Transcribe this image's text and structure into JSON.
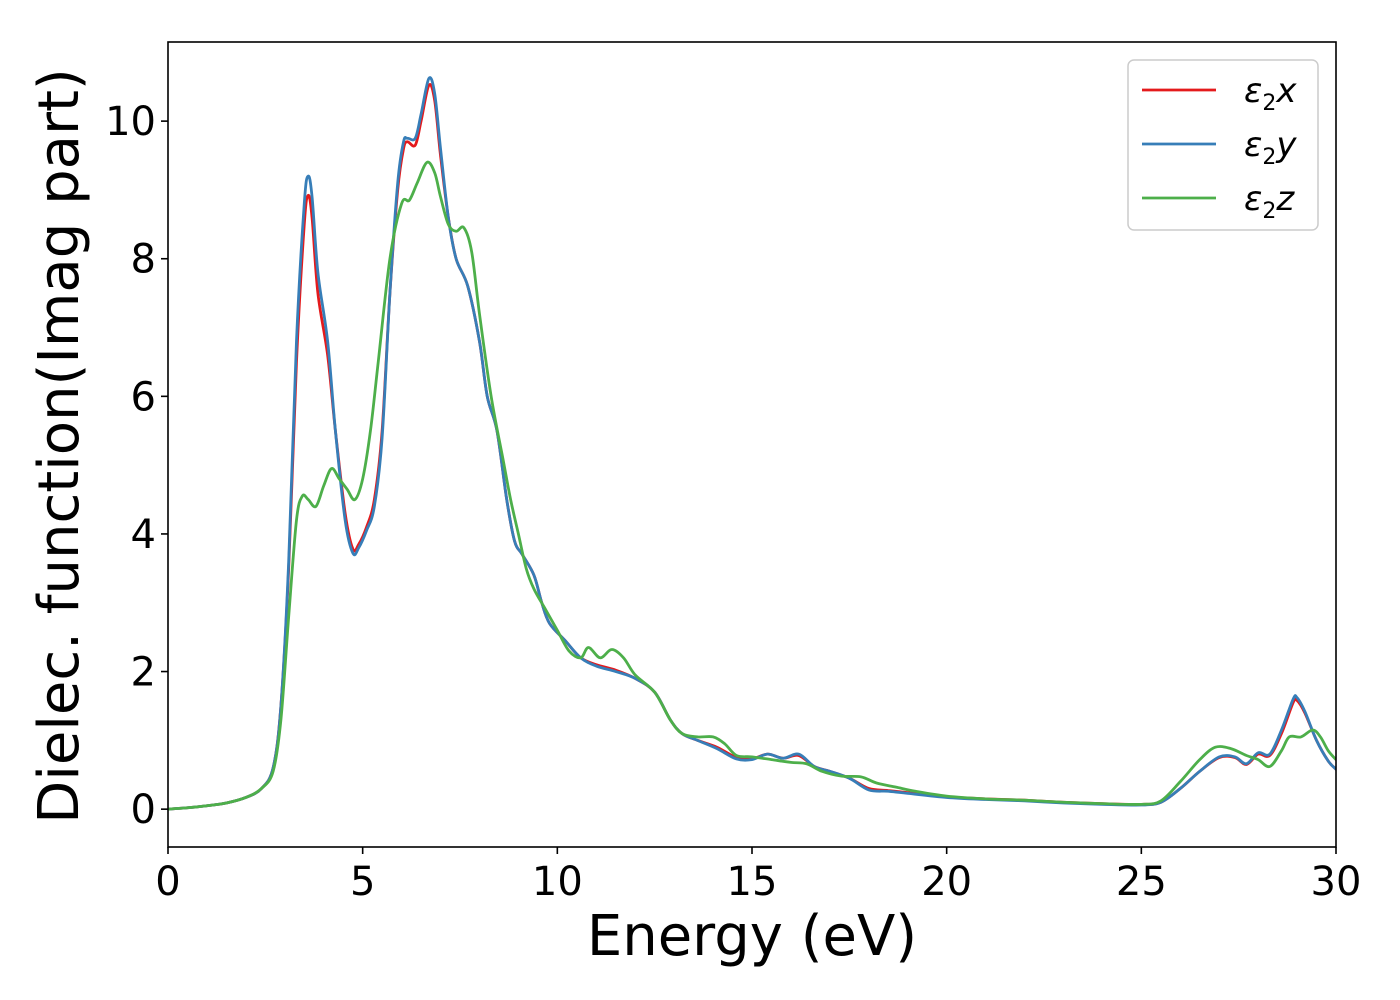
{
  "chart_data": {
    "type": "line",
    "xlabel": "Energy (eV)",
    "ylabel": "Dielec. function(Imag part)",
    "xlim": [
      0,
      30
    ],
    "ylim": [
      -0.55,
      11.15
    ],
    "xticks": [
      0,
      5,
      10,
      15,
      20,
      25,
      30
    ],
    "yticks": [
      0,
      2,
      4,
      6,
      8,
      10
    ],
    "grid": false,
    "legend_position": "top-right",
    "series": [
      {
        "legend": {
          "base": "ε",
          "sub": "2",
          "axis": "x"
        },
        "color": "#e41a1c",
        "points": [
          [
            0,
            0
          ],
          [
            0.5,
            0.02
          ],
          [
            1,
            0.05
          ],
          [
            1.5,
            0.09
          ],
          [
            2,
            0.17
          ],
          [
            2.4,
            0.3
          ],
          [
            2.7,
            0.6
          ],
          [
            2.9,
            1.5
          ],
          [
            3.1,
            3.5
          ],
          [
            3.3,
            6.5
          ],
          [
            3.5,
            8.5
          ],
          [
            3.6,
            8.92
          ],
          [
            3.7,
            8.6
          ],
          [
            3.85,
            7.5
          ],
          [
            4.1,
            6.6
          ],
          [
            4.3,
            5.5
          ],
          [
            4.55,
            4.3
          ],
          [
            4.75,
            3.78
          ],
          [
            4.9,
            3.85
          ],
          [
            5.1,
            4.1
          ],
          [
            5.3,
            4.5
          ],
          [
            5.5,
            5.5
          ],
          [
            5.7,
            7.5
          ],
          [
            5.9,
            9.0
          ],
          [
            6.05,
            9.6
          ],
          [
            6.15,
            9.7
          ],
          [
            6.35,
            9.65
          ],
          [
            6.5,
            10.0
          ],
          [
            6.7,
            10.52
          ],
          [
            6.85,
            10.3
          ],
          [
            7.0,
            9.5
          ],
          [
            7.2,
            8.6
          ],
          [
            7.4,
            8.0
          ],
          [
            7.7,
            7.6
          ],
          [
            8.0,
            6.8
          ],
          [
            8.2,
            6.0
          ],
          [
            8.45,
            5.5
          ],
          [
            8.7,
            4.5
          ],
          [
            8.9,
            3.9
          ],
          [
            9.1,
            3.7
          ],
          [
            9.4,
            3.4
          ],
          [
            9.6,
            3.0
          ],
          [
            9.8,
            2.7
          ],
          [
            10.2,
            2.45
          ],
          [
            10.6,
            2.2
          ],
          [
            11.0,
            2.1
          ],
          [
            11.5,
            2.02
          ],
          [
            12.0,
            1.9
          ],
          [
            12.5,
            1.7
          ],
          [
            12.9,
            1.3
          ],
          [
            13.2,
            1.1
          ],
          [
            13.6,
            1.0
          ],
          [
            14.1,
            0.9
          ],
          [
            14.6,
            0.75
          ],
          [
            15.0,
            0.73
          ],
          [
            15.4,
            0.8
          ],
          [
            15.8,
            0.74
          ],
          [
            16.2,
            0.78
          ],
          [
            16.6,
            0.62
          ],
          [
            17.0,
            0.55
          ],
          [
            17.5,
            0.45
          ],
          [
            18.0,
            0.3
          ],
          [
            18.5,
            0.27
          ],
          [
            19.0,
            0.24
          ],
          [
            20.0,
            0.18
          ],
          [
            21.0,
            0.15
          ],
          [
            22.0,
            0.13
          ],
          [
            23.0,
            0.1
          ],
          [
            24.0,
            0.08
          ],
          [
            25.0,
            0.07
          ],
          [
            25.5,
            0.1
          ],
          [
            26.0,
            0.3
          ],
          [
            26.5,
            0.55
          ],
          [
            27.0,
            0.75
          ],
          [
            27.4,
            0.75
          ],
          [
            27.7,
            0.65
          ],
          [
            28.0,
            0.8
          ],
          [
            28.3,
            0.78
          ],
          [
            28.6,
            1.1
          ],
          [
            28.9,
            1.55
          ],
          [
            29.0,
            1.58
          ],
          [
            29.2,
            1.4
          ],
          [
            29.5,
            1.0
          ],
          [
            29.8,
            0.7
          ],
          [
            30.0,
            0.58
          ]
        ]
      },
      {
        "legend": {
          "base": "ε",
          "sub": "2",
          "axis": "y"
        },
        "color": "#377eb8",
        "points": [
          [
            0,
            0
          ],
          [
            0.5,
            0.02
          ],
          [
            1,
            0.05
          ],
          [
            1.5,
            0.09
          ],
          [
            2,
            0.17
          ],
          [
            2.4,
            0.3
          ],
          [
            2.7,
            0.6
          ],
          [
            2.9,
            1.5
          ],
          [
            3.1,
            3.6
          ],
          [
            3.3,
            6.8
          ],
          [
            3.5,
            8.8
          ],
          [
            3.6,
            9.2
          ],
          [
            3.7,
            8.9
          ],
          [
            3.85,
            7.8
          ],
          [
            4.1,
            6.8
          ],
          [
            4.3,
            5.5
          ],
          [
            4.55,
            4.2
          ],
          [
            4.75,
            3.72
          ],
          [
            4.9,
            3.8
          ],
          [
            5.1,
            4.05
          ],
          [
            5.3,
            4.4
          ],
          [
            5.5,
            5.4
          ],
          [
            5.7,
            7.5
          ],
          [
            5.9,
            9.1
          ],
          [
            6.05,
            9.7
          ],
          [
            6.15,
            9.75
          ],
          [
            6.35,
            9.75
          ],
          [
            6.5,
            10.1
          ],
          [
            6.7,
            10.62
          ],
          [
            6.85,
            10.4
          ],
          [
            7.0,
            9.6
          ],
          [
            7.2,
            8.6
          ],
          [
            7.4,
            8.0
          ],
          [
            7.7,
            7.6
          ],
          [
            8.0,
            6.8
          ],
          [
            8.2,
            6.0
          ],
          [
            8.45,
            5.5
          ],
          [
            8.7,
            4.5
          ],
          [
            8.9,
            3.9
          ],
          [
            9.1,
            3.7
          ],
          [
            9.4,
            3.4
          ],
          [
            9.6,
            3.0
          ],
          [
            9.8,
            2.7
          ],
          [
            10.2,
            2.45
          ],
          [
            10.6,
            2.2
          ],
          [
            11.0,
            2.08
          ],
          [
            11.5,
            2.0
          ],
          [
            12.0,
            1.9
          ],
          [
            12.5,
            1.7
          ],
          [
            12.9,
            1.3
          ],
          [
            13.2,
            1.1
          ],
          [
            13.6,
            1.0
          ],
          [
            14.1,
            0.88
          ],
          [
            14.6,
            0.73
          ],
          [
            15.0,
            0.72
          ],
          [
            15.4,
            0.8
          ],
          [
            15.8,
            0.74
          ],
          [
            16.2,
            0.8
          ],
          [
            16.6,
            0.62
          ],
          [
            17.0,
            0.55
          ],
          [
            17.5,
            0.45
          ],
          [
            18.0,
            0.28
          ],
          [
            18.5,
            0.26
          ],
          [
            19.0,
            0.23
          ],
          [
            20.0,
            0.17
          ],
          [
            21.0,
            0.14
          ],
          [
            22.0,
            0.12
          ],
          [
            23.0,
            0.09
          ],
          [
            24.0,
            0.07
          ],
          [
            25.0,
            0.06
          ],
          [
            25.5,
            0.1
          ],
          [
            26.0,
            0.3
          ],
          [
            26.5,
            0.55
          ],
          [
            27.0,
            0.76
          ],
          [
            27.4,
            0.76
          ],
          [
            27.7,
            0.66
          ],
          [
            28.0,
            0.82
          ],
          [
            28.3,
            0.8
          ],
          [
            28.6,
            1.15
          ],
          [
            28.9,
            1.6
          ],
          [
            29.0,
            1.62
          ],
          [
            29.2,
            1.42
          ],
          [
            29.5,
            1.0
          ],
          [
            29.8,
            0.7
          ],
          [
            30.0,
            0.58
          ]
        ]
      },
      {
        "legend": {
          "base": "ε",
          "sub": "2",
          "axis": "z"
        },
        "color": "#4daf4a",
        "points": [
          [
            0,
            0
          ],
          [
            0.5,
            0.02
          ],
          [
            1,
            0.05
          ],
          [
            1.5,
            0.09
          ],
          [
            2,
            0.17
          ],
          [
            2.4,
            0.3
          ],
          [
            2.7,
            0.55
          ],
          [
            2.9,
            1.3
          ],
          [
            3.1,
            2.8
          ],
          [
            3.3,
            4.2
          ],
          [
            3.45,
            4.55
          ],
          [
            3.6,
            4.5
          ],
          [
            3.8,
            4.4
          ],
          [
            4.0,
            4.7
          ],
          [
            4.2,
            4.95
          ],
          [
            4.4,
            4.8
          ],
          [
            4.6,
            4.65
          ],
          [
            4.8,
            4.5
          ],
          [
            5.0,
            4.8
          ],
          [
            5.2,
            5.5
          ],
          [
            5.4,
            6.5
          ],
          [
            5.7,
            8.0
          ],
          [
            6.0,
            8.8
          ],
          [
            6.2,
            8.85
          ],
          [
            6.4,
            9.1
          ],
          [
            6.65,
            9.4
          ],
          [
            6.85,
            9.25
          ],
          [
            7.0,
            8.9
          ],
          [
            7.2,
            8.5
          ],
          [
            7.4,
            8.4
          ],
          [
            7.6,
            8.45
          ],
          [
            7.8,
            8.1
          ],
          [
            8.0,
            7.2
          ],
          [
            8.3,
            6.0
          ],
          [
            8.6,
            5.1
          ],
          [
            8.8,
            4.5
          ],
          [
            9.0,
            4.0
          ],
          [
            9.2,
            3.5
          ],
          [
            9.4,
            3.2
          ],
          [
            9.7,
            2.9
          ],
          [
            10.0,
            2.6
          ],
          [
            10.3,
            2.3
          ],
          [
            10.6,
            2.2
          ],
          [
            10.8,
            2.35
          ],
          [
            11.1,
            2.2
          ],
          [
            11.4,
            2.32
          ],
          [
            11.7,
            2.2
          ],
          [
            12.0,
            1.95
          ],
          [
            12.5,
            1.7
          ],
          [
            12.9,
            1.3
          ],
          [
            13.2,
            1.1
          ],
          [
            13.6,
            1.05
          ],
          [
            14.0,
            1.05
          ],
          [
            14.3,
            0.95
          ],
          [
            14.6,
            0.78
          ],
          [
            15.0,
            0.76
          ],
          [
            15.5,
            0.72
          ],
          [
            16.0,
            0.68
          ],
          [
            16.4,
            0.66
          ],
          [
            16.8,
            0.55
          ],
          [
            17.3,
            0.48
          ],
          [
            17.8,
            0.47
          ],
          [
            18.2,
            0.38
          ],
          [
            18.7,
            0.32
          ],
          [
            19.2,
            0.26
          ],
          [
            20.0,
            0.19
          ],
          [
            21.0,
            0.15
          ],
          [
            22.0,
            0.13
          ],
          [
            23.0,
            0.1
          ],
          [
            24.0,
            0.08
          ],
          [
            25.0,
            0.07
          ],
          [
            25.5,
            0.12
          ],
          [
            26.0,
            0.4
          ],
          [
            26.5,
            0.72
          ],
          [
            26.9,
            0.9
          ],
          [
            27.3,
            0.88
          ],
          [
            27.7,
            0.78
          ],
          [
            28.0,
            0.72
          ],
          [
            28.3,
            0.62
          ],
          [
            28.6,
            0.85
          ],
          [
            28.8,
            1.05
          ],
          [
            29.1,
            1.05
          ],
          [
            29.4,
            1.15
          ],
          [
            29.6,
            1.05
          ],
          [
            29.8,
            0.85
          ],
          [
            30.0,
            0.72
          ]
        ]
      }
    ]
  }
}
